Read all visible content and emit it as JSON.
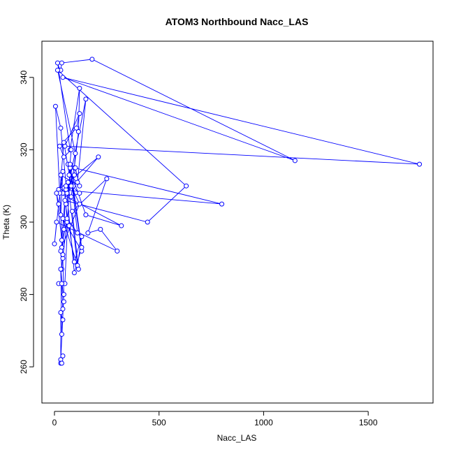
{
  "chart_data": {
    "type": "scatter",
    "title": "ATOM3 Northbound Nacc_LAS",
    "xlabel": "Nacc_LAS",
    "ylabel": "Theta (K)",
    "xlim": [
      -60,
      1810
    ],
    "ylim": [
      250,
      350
    ],
    "xticks": [
      0,
      500,
      1000,
      1500
    ],
    "yticks": [
      260,
      280,
      300,
      320,
      340
    ],
    "grid": false,
    "legend": "none",
    "series": [
      {
        "color": "#0000ff",
        "marker": "open-circle",
        "connected": true,
        "x": [
          30,
          45,
          40,
          60,
          55,
          95,
          115,
          120,
          75,
          15,
          25,
          30,
          35,
          180,
          1150,
          40,
          1745,
          50,
          120,
          105,
          25,
          45,
          80,
          70,
          110,
          150,
          60,
          210,
          20,
          800,
          95,
          100,
          15,
          630,
          445,
          50,
          70,
          95,
          130,
          110,
          65,
          120,
          80,
          95,
          100,
          120,
          30,
          40,
          55,
          90,
          65,
          150,
          320,
          25,
          45,
          80,
          120,
          35,
          60,
          110,
          75,
          130,
          40,
          115,
          85,
          250,
          160,
          220,
          300,
          10,
          0,
          20,
          40,
          30,
          10,
          35,
          55,
          45,
          30,
          35,
          40,
          5,
          30,
          95,
          130,
          75,
          50,
          20,
          35,
          40,
          45,
          30,
          35,
          40,
          30,
          30,
          35,
          40
        ],
        "y": [
          262,
          280,
          290,
          300,
          305,
          315,
          325,
          337,
          320,
          344,
          342,
          342,
          344,
          345,
          317,
          340,
          316,
          321,
          330,
          326,
          321,
          318,
          320,
          313,
          311,
          334,
          308,
          318,
          309,
          305,
          315,
          319,
          342,
          310,
          300,
          306,
          299,
          289,
          296,
          288,
          311,
          308,
          307,
          313,
          315,
          310,
          313,
          308,
          309,
          310,
          316,
          302,
          299,
          308,
          322,
          310,
          305,
          293,
          301,
          297,
          315,
          292,
          301,
          287,
          303,
          312,
          297,
          298,
          292,
          300,
          294,
          305,
          314,
          302,
          308,
          295,
          310,
          298,
          292,
          287,
          291,
          332,
          326,
          286,
          293,
          316,
          283,
          283,
          283,
          276,
          278,
          287,
          269,
          273,
          275,
          261,
          261,
          263
        ]
      }
    ]
  }
}
